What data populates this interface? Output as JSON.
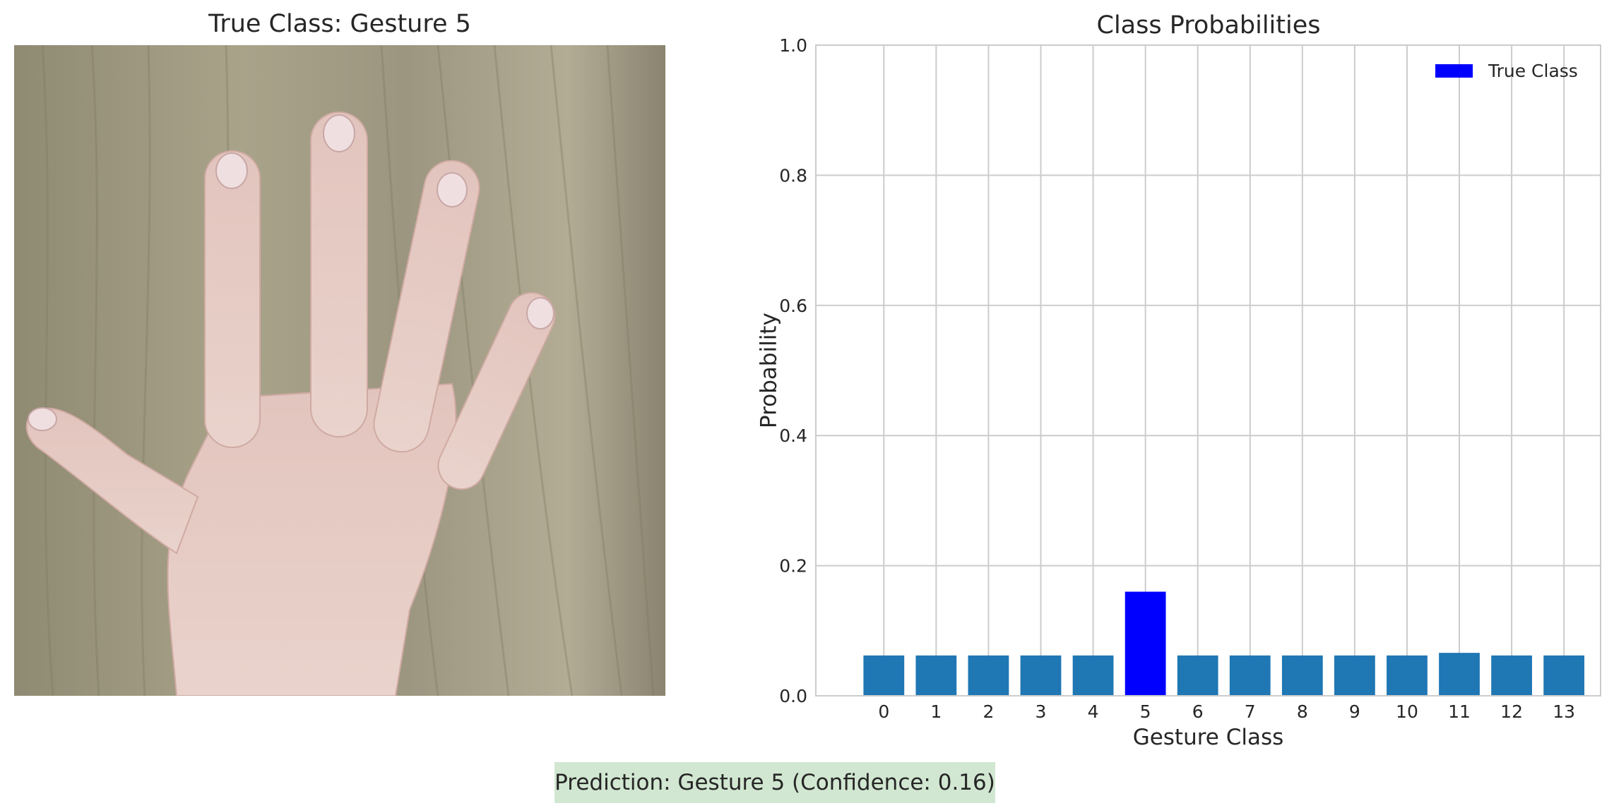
{
  "photo": {
    "title": "True Class: Gesture 5",
    "subject": "hand-photo"
  },
  "chart_data": {
    "type": "bar",
    "title": "Class Probabilities",
    "xlabel": "Gesture Class",
    "ylabel": "Probability",
    "ylim": [
      0,
      1.0
    ],
    "yticks": [
      "0.0",
      "0.2",
      "0.4",
      "0.6",
      "0.8",
      "1.0"
    ],
    "categories": [
      "0",
      "1",
      "2",
      "3",
      "4",
      "5",
      "6",
      "7",
      "8",
      "9",
      "10",
      "11",
      "12",
      "13"
    ],
    "values": [
      0.062,
      0.062,
      0.062,
      0.062,
      0.062,
      0.16,
      0.062,
      0.062,
      0.062,
      0.062,
      0.062,
      0.066,
      0.062,
      0.062
    ],
    "highlight_index": 5,
    "bar_color": "#1f77b4",
    "highlight_color": "#0000ff",
    "grid": true,
    "legend": {
      "label": "True Class",
      "placement": "top-right"
    }
  },
  "prediction": {
    "text": "Prediction: Gesture 5 (Confidence: 0.16)",
    "background": "#d1e7d1"
  }
}
